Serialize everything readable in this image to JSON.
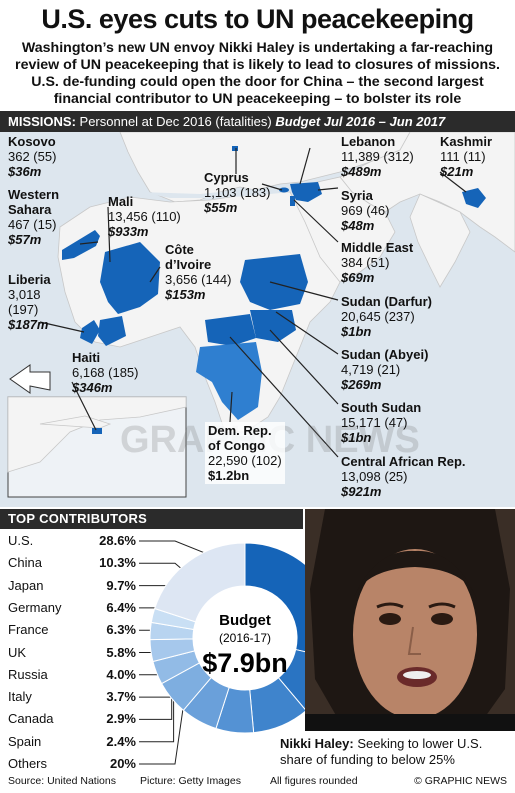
{
  "title": "U.S. eyes cuts to UN peacekeeping",
  "intro": "Washington’s new UN envoy Nikki Haley is undertaking a far-reaching review of UN peacekeeping that is likely to lead to closures of missions. U.S. de-funding could open the door for China – the second largest financial contributor to UN peacekeeping – to bolster its role",
  "missions_header": {
    "label": "MISSIONS:",
    "desc": "Personnel at Dec 2016 (fatalities)",
    "budget": "Budget Jul 2016 – Jun 2017"
  },
  "missions": {
    "kosovo": {
      "name": "Kosovo",
      "stats": "362 (55)",
      "budget": "$36m"
    },
    "western_sahara": {
      "name1": "Western",
      "name2": "Sahara",
      "stats": "467 (15)",
      "budget": "$57m"
    },
    "liberia": {
      "name": "Liberia",
      "stats1": "3,018",
      "stats2": "(197)",
      "budget": "$187m"
    },
    "mali": {
      "name": "Mali",
      "stats": "13,456 (110)",
      "budget": "$933m"
    },
    "cote": {
      "name1": "Côte",
      "name2": "d’Ivoire",
      "stats": "3,656 (144)",
      "budget": "$153m"
    },
    "cyprus": {
      "name": "Cyprus",
      "stats": "1,103 (183)",
      "budget": "$55m"
    },
    "lebanon": {
      "name": "Lebanon",
      "stats": "11,389 (312)",
      "budget": "$489m"
    },
    "kashmir": {
      "name": "Kashmir",
      "stats": "111 (11)",
      "budget": "$21m"
    },
    "syria": {
      "name": "Syria",
      "stats": "969 (46)",
      "budget": "$48m"
    },
    "middle_east": {
      "name": "Middle East",
      "stats": "384 (51)",
      "budget": "$69m"
    },
    "darfur": {
      "name": "Sudan (Darfur)",
      "stats": "20,645 (237)",
      "budget": "$1bn"
    },
    "abyei": {
      "name": "Sudan (Abyei)",
      "stats": "4,719 (21)",
      "budget": "$269m"
    },
    "south_sudan": {
      "name": "South Sudan",
      "stats": "15,171 (47)",
      "budget": "$1bn"
    },
    "car": {
      "name": "Central African Rep.",
      "stats": "13,098 (25)",
      "budget": "$921m"
    },
    "drc": {
      "name1": "Dem. Rep.",
      "name2": "of Congo",
      "stats": "22,590 (102)",
      "budget": "$1.2bn"
    },
    "haiti": {
      "name": "Haiti",
      "stats": "6,168 (185)",
      "budget": "$346m"
    }
  },
  "contributors_header": "TOP CONTRIBUTORS",
  "chart_data": {
    "type": "pie",
    "title": "Budget",
    "subtitle": "(2016-17)",
    "total_label": "$7.9bn",
    "categories": [
      "U.S.",
      "China",
      "Japan",
      "Germany",
      "France",
      "UK",
      "Russia",
      "Italy",
      "Canada",
      "Spain",
      "Others"
    ],
    "values": [
      28.6,
      10.3,
      9.7,
      6.4,
      6.3,
      5.8,
      4.0,
      3.7,
      2.9,
      2.4,
      20
    ],
    "value_labels": [
      "28.6%",
      "10.3%",
      "9.7%",
      "6.4%",
      "6.3%",
      "5.8%",
      "4.0%",
      "3.7%",
      "2.9%",
      "2.4%",
      "20%"
    ]
  },
  "colors": {
    "mission_blue": "#1564b8",
    "map_land": "#f4f4f4",
    "map_sea": "#dde6ee",
    "header_dark": "#2b2b2b"
  },
  "caption": {
    "name": "Nikki Haley:",
    "text": "Seeking to lower U.S. share of funding to below 25%"
  },
  "footer": {
    "source": "Source: United Nations",
    "picture": "Picture: Getty Images",
    "note": "All figures rounded",
    "credit": "© GRAPHIC NEWS"
  }
}
